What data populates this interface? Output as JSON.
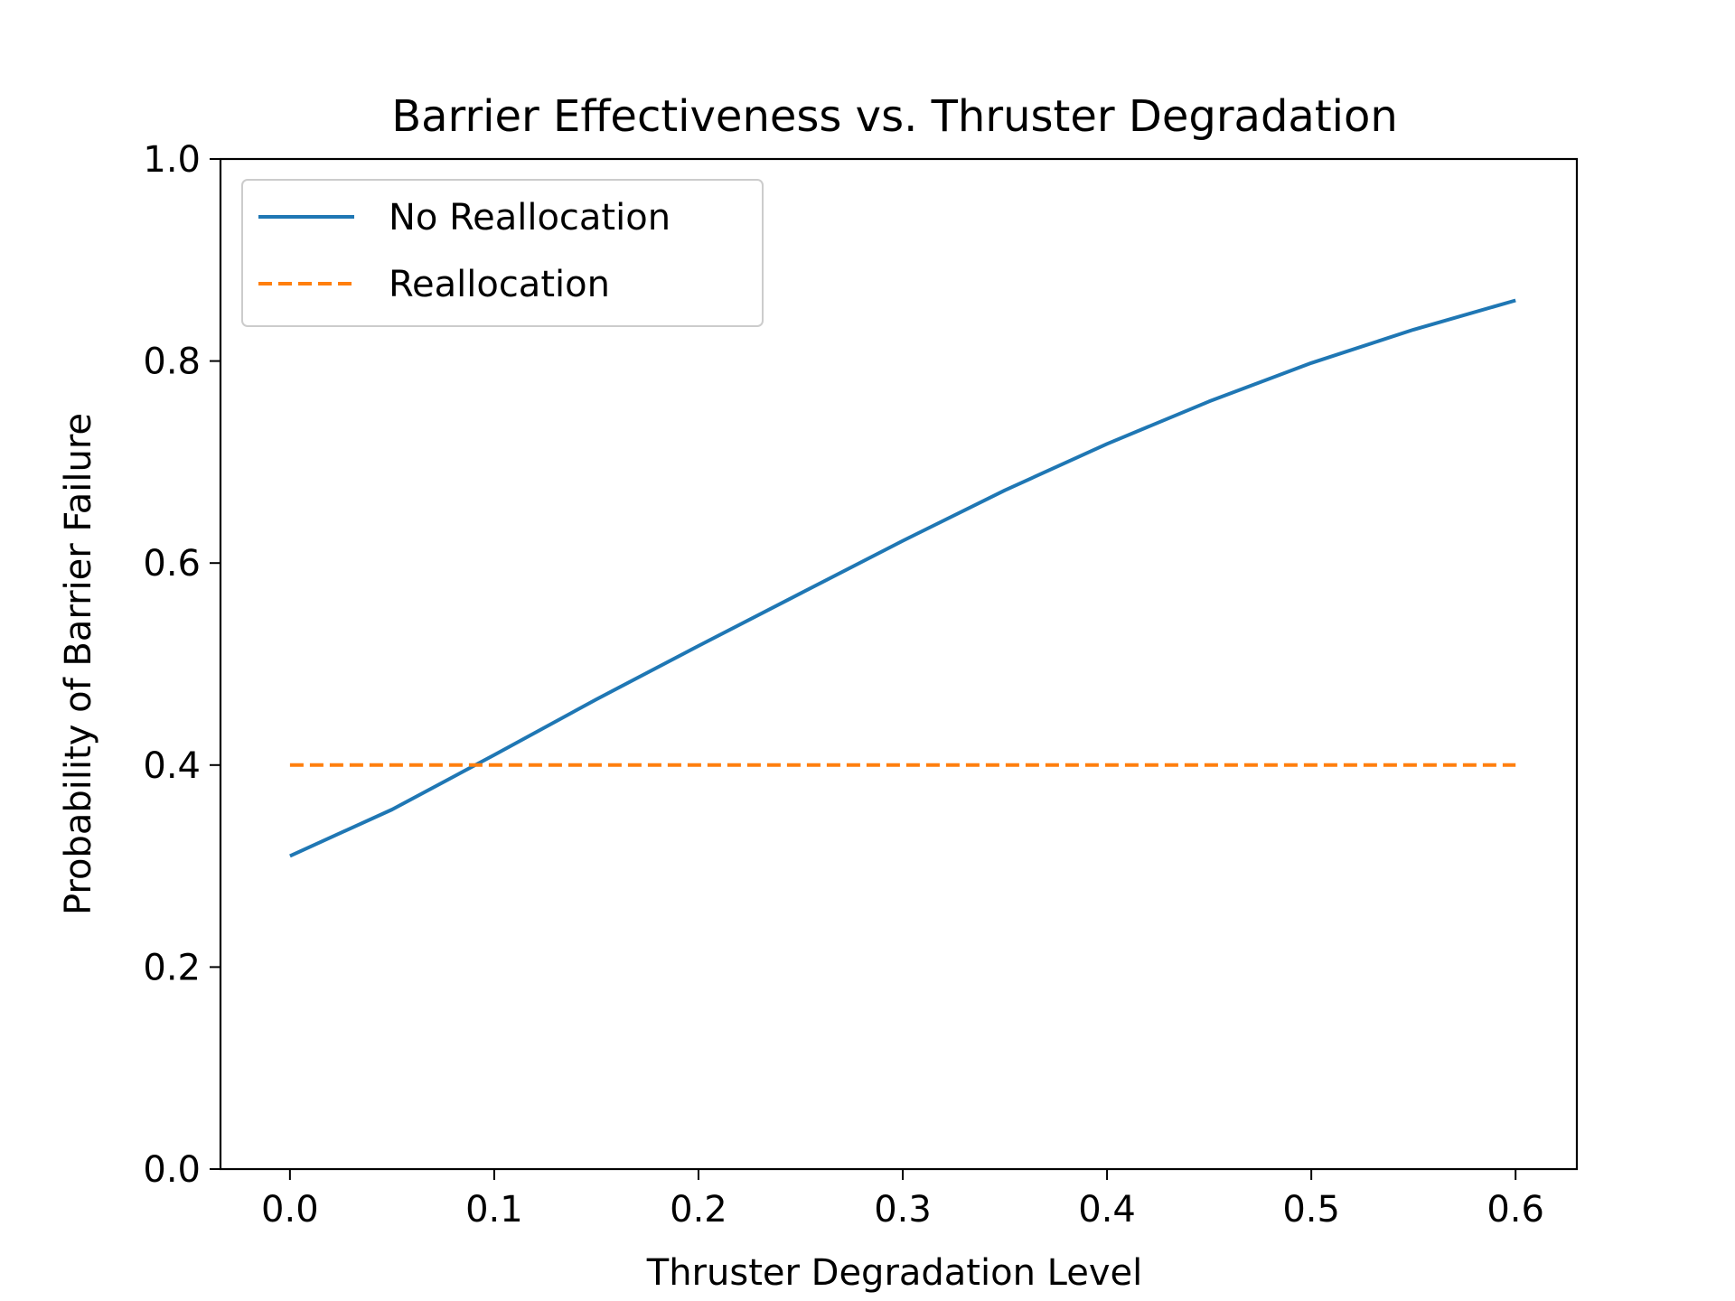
{
  "chart_data": {
    "type": "line",
    "title": "Barrier Effectiveness vs. Thruster Degradation",
    "xlabel": "Thruster Degradation Level",
    "ylabel": "Probability of Barrier Failure",
    "xlim": [
      -0.034,
      0.63
    ],
    "ylim": [
      0.0,
      1.0
    ],
    "xticks": [
      0.0,
      0.1,
      0.2,
      0.3,
      0.4,
      0.5,
      0.6
    ],
    "xtick_labels": [
      "0.0",
      "0.1",
      "0.2",
      "0.3",
      "0.4",
      "0.5",
      "0.6"
    ],
    "yticks": [
      0.0,
      0.2,
      0.4,
      0.6,
      0.8,
      1.0
    ],
    "ytick_labels": [
      "0.0",
      "0.2",
      "0.4",
      "0.6",
      "0.8",
      "1.0"
    ],
    "grid": false,
    "legend_position": "upper left",
    "series": [
      {
        "name": "No Reallocation",
        "color": "#1f77b4",
        "style": "solid",
        "x": [
          0.0,
          0.05,
          0.1,
          0.15,
          0.2,
          0.25,
          0.3,
          0.35,
          0.4,
          0.45,
          0.5,
          0.55,
          0.6
        ],
        "y": [
          0.31,
          0.356,
          0.41,
          0.465,
          0.518,
          0.57,
          0.622,
          0.672,
          0.718,
          0.76,
          0.798,
          0.831,
          0.86
        ]
      },
      {
        "name": "Reallocation",
        "color": "#ff7f0e",
        "style": "dashed",
        "x": [
          0.0,
          0.6
        ],
        "y": [
          0.4,
          0.4
        ]
      }
    ]
  }
}
